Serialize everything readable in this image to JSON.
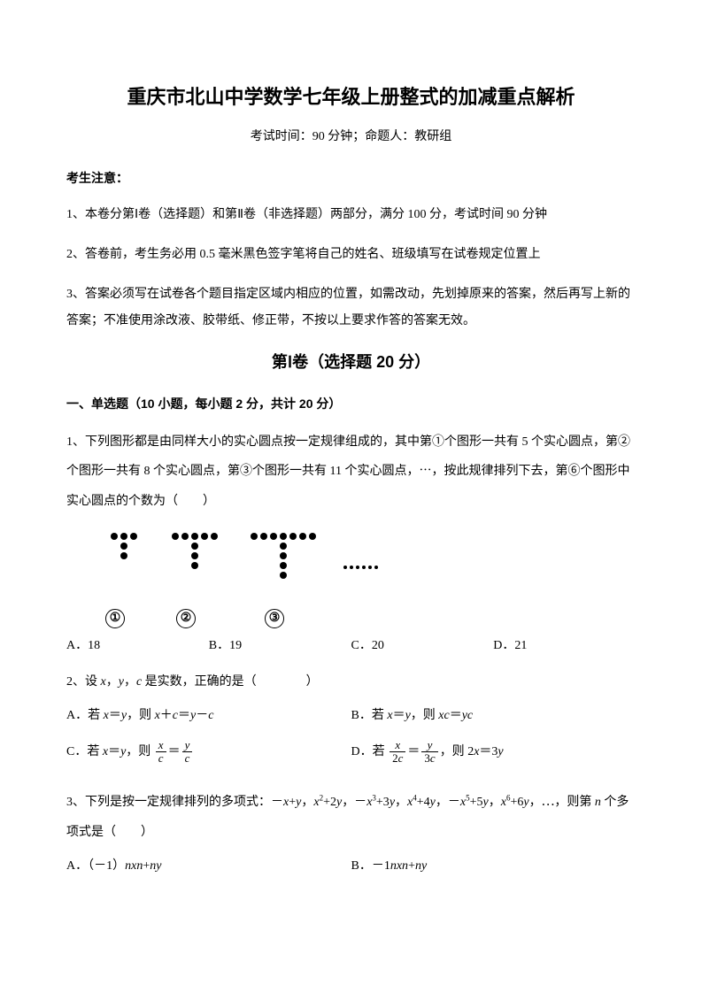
{
  "title": "重庆市北山中学数学七年级上册整式的加减重点解析",
  "subtitle": "考试时间：90 分钟；命题人：教研组",
  "notice_header": "考生注意：",
  "notices": [
    "1、本卷分第Ⅰ卷（选择题）和第Ⅱ卷（非选择题）两部分，满分 100 分，考试时间 90 分钟",
    "2、答卷前，考生务必用 0.5 毫米黑色签字笔将自己的姓名、班级填写在试卷规定位置上",
    "3、答案必须写在试卷各个题目指定区域内相应的位置，如需改动，先划掉原来的答案，然后再写上新的答案；不准使用涂改液、胶带纸、修正带，不按以上要求作答的答案无效。"
  ],
  "section1": "第Ⅰ卷（选择题  20 分）",
  "sub_section": "一、单选题（10 小题，每小题 2 分，共计 20 分）",
  "q1": {
    "text": "1、下列图形都是由同样大小的实心圆点按一定规律组成的，其中第①个图形一共有 5 个实心圆点，第②个图形一共有 8 个实心圆点，第③个图形一共有 11 个实心圆点，⋯，按此规律排列下去，第⑥个图形中实心圆点的个数为（　　）",
    "labels": [
      "①",
      "②",
      "③"
    ],
    "ellipsis": "⋯⋯",
    "options": {
      "a": "A．18",
      "b": "B．19",
      "c": "C．20",
      "d": "D．21"
    }
  },
  "q2": {
    "text_prefix": "2、设 ",
    "text_mid": "，",
    "text_mid2": "，",
    "text_suffix": " 是实数，正确的是（　　　　）",
    "options": {
      "a_prefix": "A．若 ",
      "a_mid": "，则 ",
      "b_prefix": "B．若 ",
      "b_mid": "，则 ",
      "c_prefix": "C．若 ",
      "c_mid": "，则 ",
      "d_prefix": "D．若 ",
      "d_mid": "，则 "
    }
  },
  "q3": {
    "text_prefix": "3、下列是按一定规律排列的多项式：－",
    "text_suffix": "，⋯，则第 ",
    "text_end": " 个多项式是（　　）",
    "options": {
      "a": "A．（－1）",
      "b": "B．－1"
    }
  },
  "figure": {
    "dot_radius": 4,
    "dot_color": "#000000",
    "shapes": [
      {
        "top_count": 3,
        "stem_count": 2
      },
      {
        "top_count": 5,
        "stem_count": 3
      },
      {
        "top_count": 7,
        "stem_count": 4
      }
    ],
    "ellipsis_dots": 6,
    "label_widths": [
      70,
      90,
      110
    ]
  }
}
